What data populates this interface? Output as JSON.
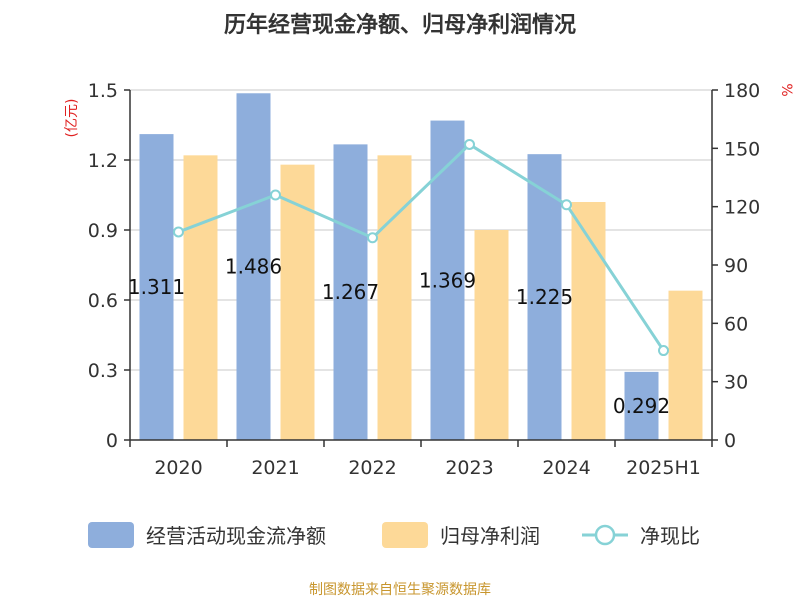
{
  "chart_data": {
    "type": "bar",
    "title": "历年经营现金净额、归母净利润情况",
    "categories": [
      "2020",
      "2021",
      "2022",
      "2023",
      "2024",
      "2025H1"
    ],
    "left_axis": {
      "unit_label": "(亿元)",
      "ylim": [
        0,
        1.5
      ],
      "ticks": [
        "0",
        "0.3",
        "0.6",
        "0.9",
        "1.2",
        "1.5"
      ]
    },
    "right_axis": {
      "unit_label": "%",
      "ylim": [
        0,
        180
      ],
      "ticks": [
        "0",
        "30",
        "60",
        "90",
        "120",
        "150",
        "180"
      ]
    },
    "series": [
      {
        "name": "经营活动现金流净额",
        "kind": "bar",
        "axis": "left",
        "color": "#8eaedc",
        "values": [
          1.311,
          1.486,
          1.267,
          1.369,
          1.225,
          0.292
        ],
        "labels": [
          "1.311",
          "1.486",
          "1.267",
          "1.369",
          "1.225",
          "0.292"
        ]
      },
      {
        "name": "归母净利润",
        "kind": "bar",
        "axis": "left",
        "color": "#fdd998",
        "values": [
          1.22,
          1.18,
          1.22,
          0.9,
          1.02,
          0.64
        ]
      },
      {
        "name": "净现比",
        "kind": "line",
        "axis": "right",
        "color": "#86d2d6",
        "values": [
          107,
          126,
          104,
          152,
          121,
          46
        ]
      }
    ],
    "grid": true,
    "legend": "bottom"
  },
  "footer": {
    "source": "制图数据来自恒生聚源数据库"
  }
}
